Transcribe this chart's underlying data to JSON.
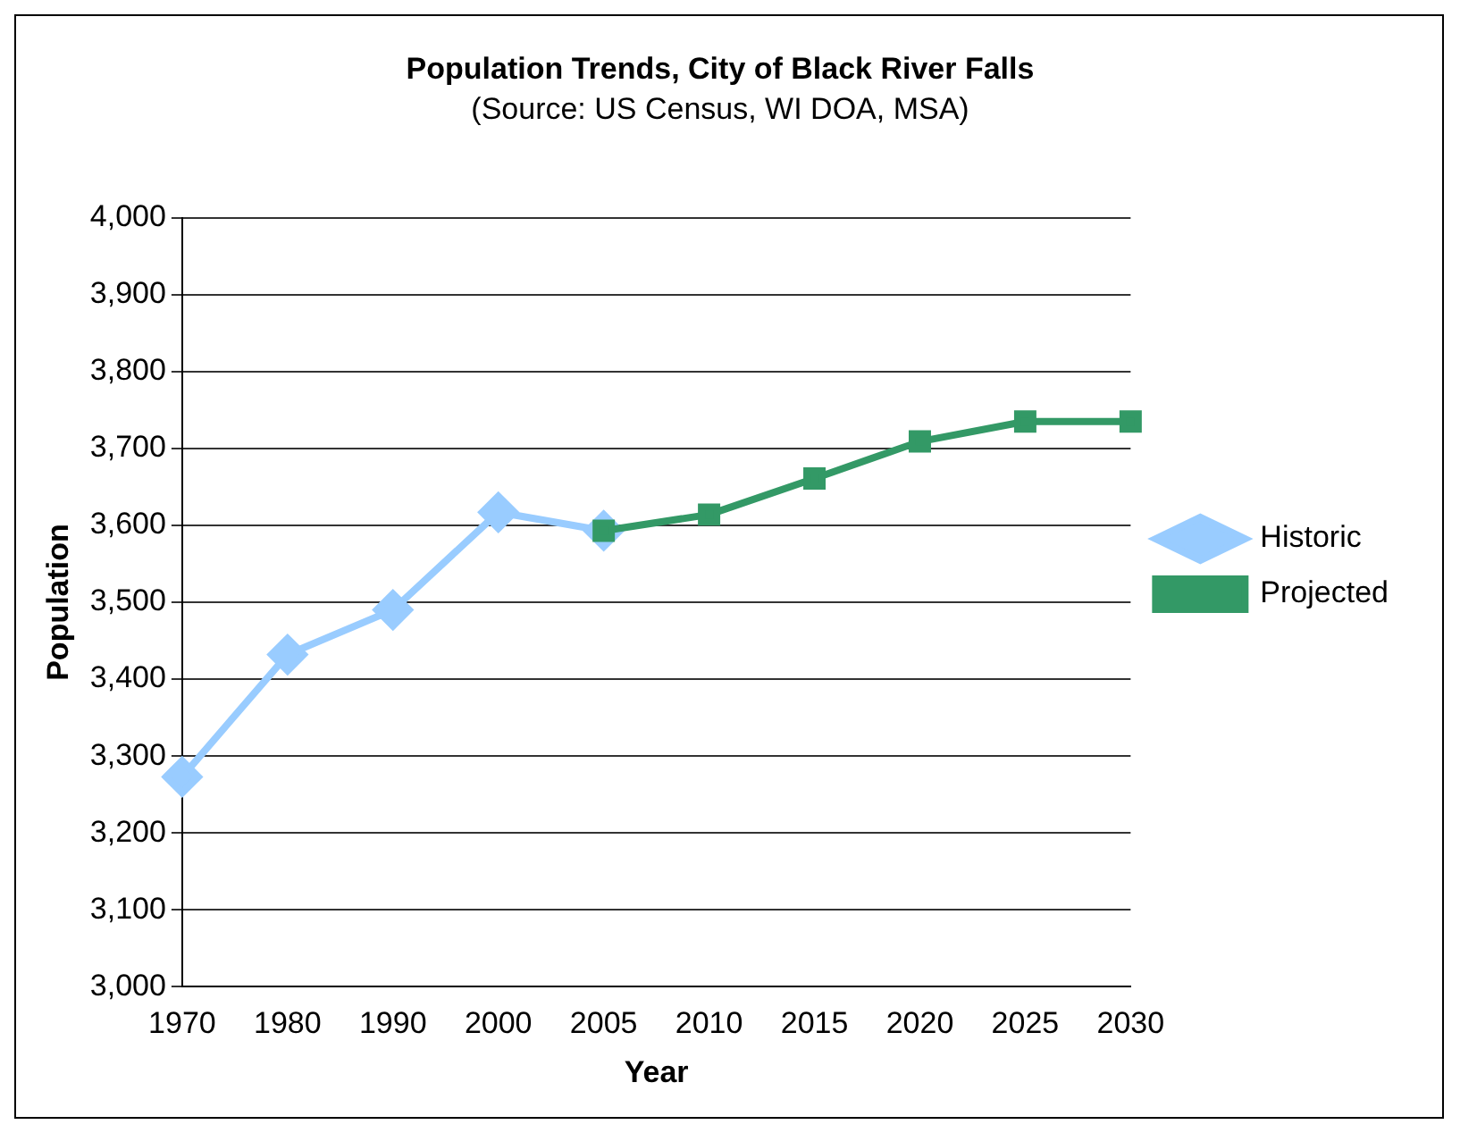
{
  "chart_data": {
    "type": "line",
    "title": "Population Trends, City of Black River Falls",
    "subtitle": "(Source: US Census, WI DOA, MSA)",
    "xlabel": "Year",
    "ylabel": "Population",
    "categories": [
      "1970",
      "1980",
      "1990",
      "2000",
      "2005",
      "2010",
      "2015",
      "2020",
      "2025",
      "2030"
    ],
    "series": [
      {
        "name": "Historic",
        "color": "#99ccff",
        "marker": "diamond",
        "values": [
          3273,
          3432,
          3490,
          3617,
          3593,
          null,
          null,
          null,
          null,
          null
        ]
      },
      {
        "name": "Projected",
        "color": "#339966",
        "marker": "square",
        "values": [
          null,
          null,
          null,
          null,
          3593,
          3614,
          3661,
          3709,
          3735,
          3735
        ]
      }
    ],
    "ylim": [
      3000,
      4000
    ],
    "yticks": [
      {
        "value": 3000,
        "label": "3,000"
      },
      {
        "value": 3100,
        "label": "3,100"
      },
      {
        "value": 3200,
        "label": "3,200"
      },
      {
        "value": 3300,
        "label": "3,300"
      },
      {
        "value": 3400,
        "label": "3,400"
      },
      {
        "value": 3500,
        "label": "3,500"
      },
      {
        "value": 3600,
        "label": "3,600"
      },
      {
        "value": 3700,
        "label": "3,700"
      },
      {
        "value": 3800,
        "label": "3,800"
      },
      {
        "value": 3900,
        "label": "3,900"
      },
      {
        "value": 4000,
        "label": "4,000"
      }
    ],
    "grid": "y",
    "legend": "right",
    "line_style": "solid"
  }
}
